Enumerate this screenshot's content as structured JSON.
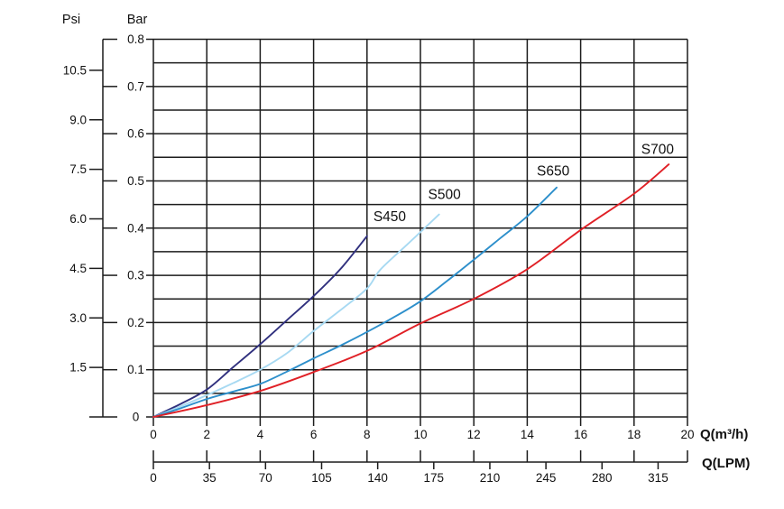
{
  "chart_data": {
    "type": "line",
    "background": "#ffffff",
    "grid": {
      "visible": true,
      "color": "#1c1c1c",
      "x_step": 2,
      "y_step": 0.05
    },
    "primary_y_axis": {
      "header": "Bar",
      "range": [
        0,
        0.8
      ],
      "tick_labels": [
        "0.8",
        "0.7",
        "0.6",
        "0.5",
        "0.4",
        "0.3",
        "0.2",
        "0.1",
        "0"
      ],
      "tick_values": [
        0.8,
        0.7,
        0.6,
        0.5,
        0.4,
        0.3,
        0.2,
        0.1,
        0
      ]
    },
    "secondary_y_axis": {
      "header": "Psi",
      "tick_labels": [
        "10.5",
        "9.0",
        "7.5",
        "6.0",
        "4.5",
        "3.0",
        "1.5"
      ],
      "tick_values": [
        10.5,
        9.0,
        7.5,
        6.0,
        4.5,
        3.0,
        1.5
      ],
      "psi_per_bar": 14.3
    },
    "primary_x_axis": {
      "label": "Q(m³/h)",
      "range": [
        0,
        20
      ],
      "tick_labels": [
        "0",
        "2",
        "4",
        "6",
        "8",
        "10",
        "12",
        "14",
        "16",
        "18",
        "20"
      ],
      "tick_values": [
        0,
        2,
        4,
        6,
        8,
        10,
        12,
        14,
        16,
        18,
        20
      ]
    },
    "secondary_x_axis": {
      "label": "Q(LPM)",
      "tick_labels": [
        "0",
        "35",
        "70",
        "105",
        "140",
        "175",
        "210",
        "245",
        "280",
        "315"
      ],
      "tick_values": [
        0,
        35,
        70,
        105,
        140,
        175,
        210,
        245,
        280,
        315
      ],
      "lpm_per_m3h": 16.6667,
      "guide_tick_step_m3h": 2
    },
    "series": [
      {
        "name": "S450",
        "color": "#30307e",
        "label_anchor": [
          8.85,
          0.425
        ],
        "points": [
          [
            0,
            0
          ],
          [
            1,
            0.027
          ],
          [
            2,
            0.058
          ],
          [
            3,
            0.106
          ],
          [
            4,
            0.154
          ],
          [
            5,
            0.205
          ],
          [
            6,
            0.256
          ],
          [
            7,
            0.313
          ],
          [
            8,
            0.383
          ]
        ]
      },
      {
        "name": "S500",
        "color": "#a7d9f2",
        "label_anchor": [
          10.9,
          0.472
        ],
        "points": [
          [
            0,
            0
          ],
          [
            1,
            0.022
          ],
          [
            2,
            0.046
          ],
          [
            3,
            0.072
          ],
          [
            4,
            0.1
          ],
          [
            5,
            0.135
          ],
          [
            6,
            0.182
          ],
          [
            7,
            0.226
          ],
          [
            8,
            0.272
          ],
          [
            8.5,
            0.312
          ],
          [
            9.5,
            0.365
          ],
          [
            10.7,
            0.429
          ]
        ]
      },
      {
        "name": "S650",
        "color": "#2d8fcb",
        "label_anchor": [
          14.97,
          0.522
        ],
        "points": [
          [
            0,
            0
          ],
          [
            1,
            0.018
          ],
          [
            2,
            0.038
          ],
          [
            3,
            0.054
          ],
          [
            4,
            0.07
          ],
          [
            5,
            0.096
          ],
          [
            6,
            0.124
          ],
          [
            7,
            0.151
          ],
          [
            8,
            0.18
          ],
          [
            9,
            0.211
          ],
          [
            10,
            0.245
          ],
          [
            11,
            0.288
          ],
          [
            12,
            0.333
          ],
          [
            13,
            0.379
          ],
          [
            14,
            0.425
          ],
          [
            15.1,
            0.486
          ]
        ]
      },
      {
        "name": "S700",
        "color": "#e02026",
        "label_anchor": [
          18.88,
          0.568
        ],
        "points": [
          [
            0,
            0
          ],
          [
            2,
            0.025
          ],
          [
            4,
            0.055
          ],
          [
            6,
            0.095
          ],
          [
            8,
            0.14
          ],
          [
            10,
            0.198
          ],
          [
            12,
            0.25
          ],
          [
            14,
            0.313
          ],
          [
            16,
            0.396
          ],
          [
            18,
            0.473
          ],
          [
            19.3,
            0.535
          ]
        ]
      }
    ]
  }
}
